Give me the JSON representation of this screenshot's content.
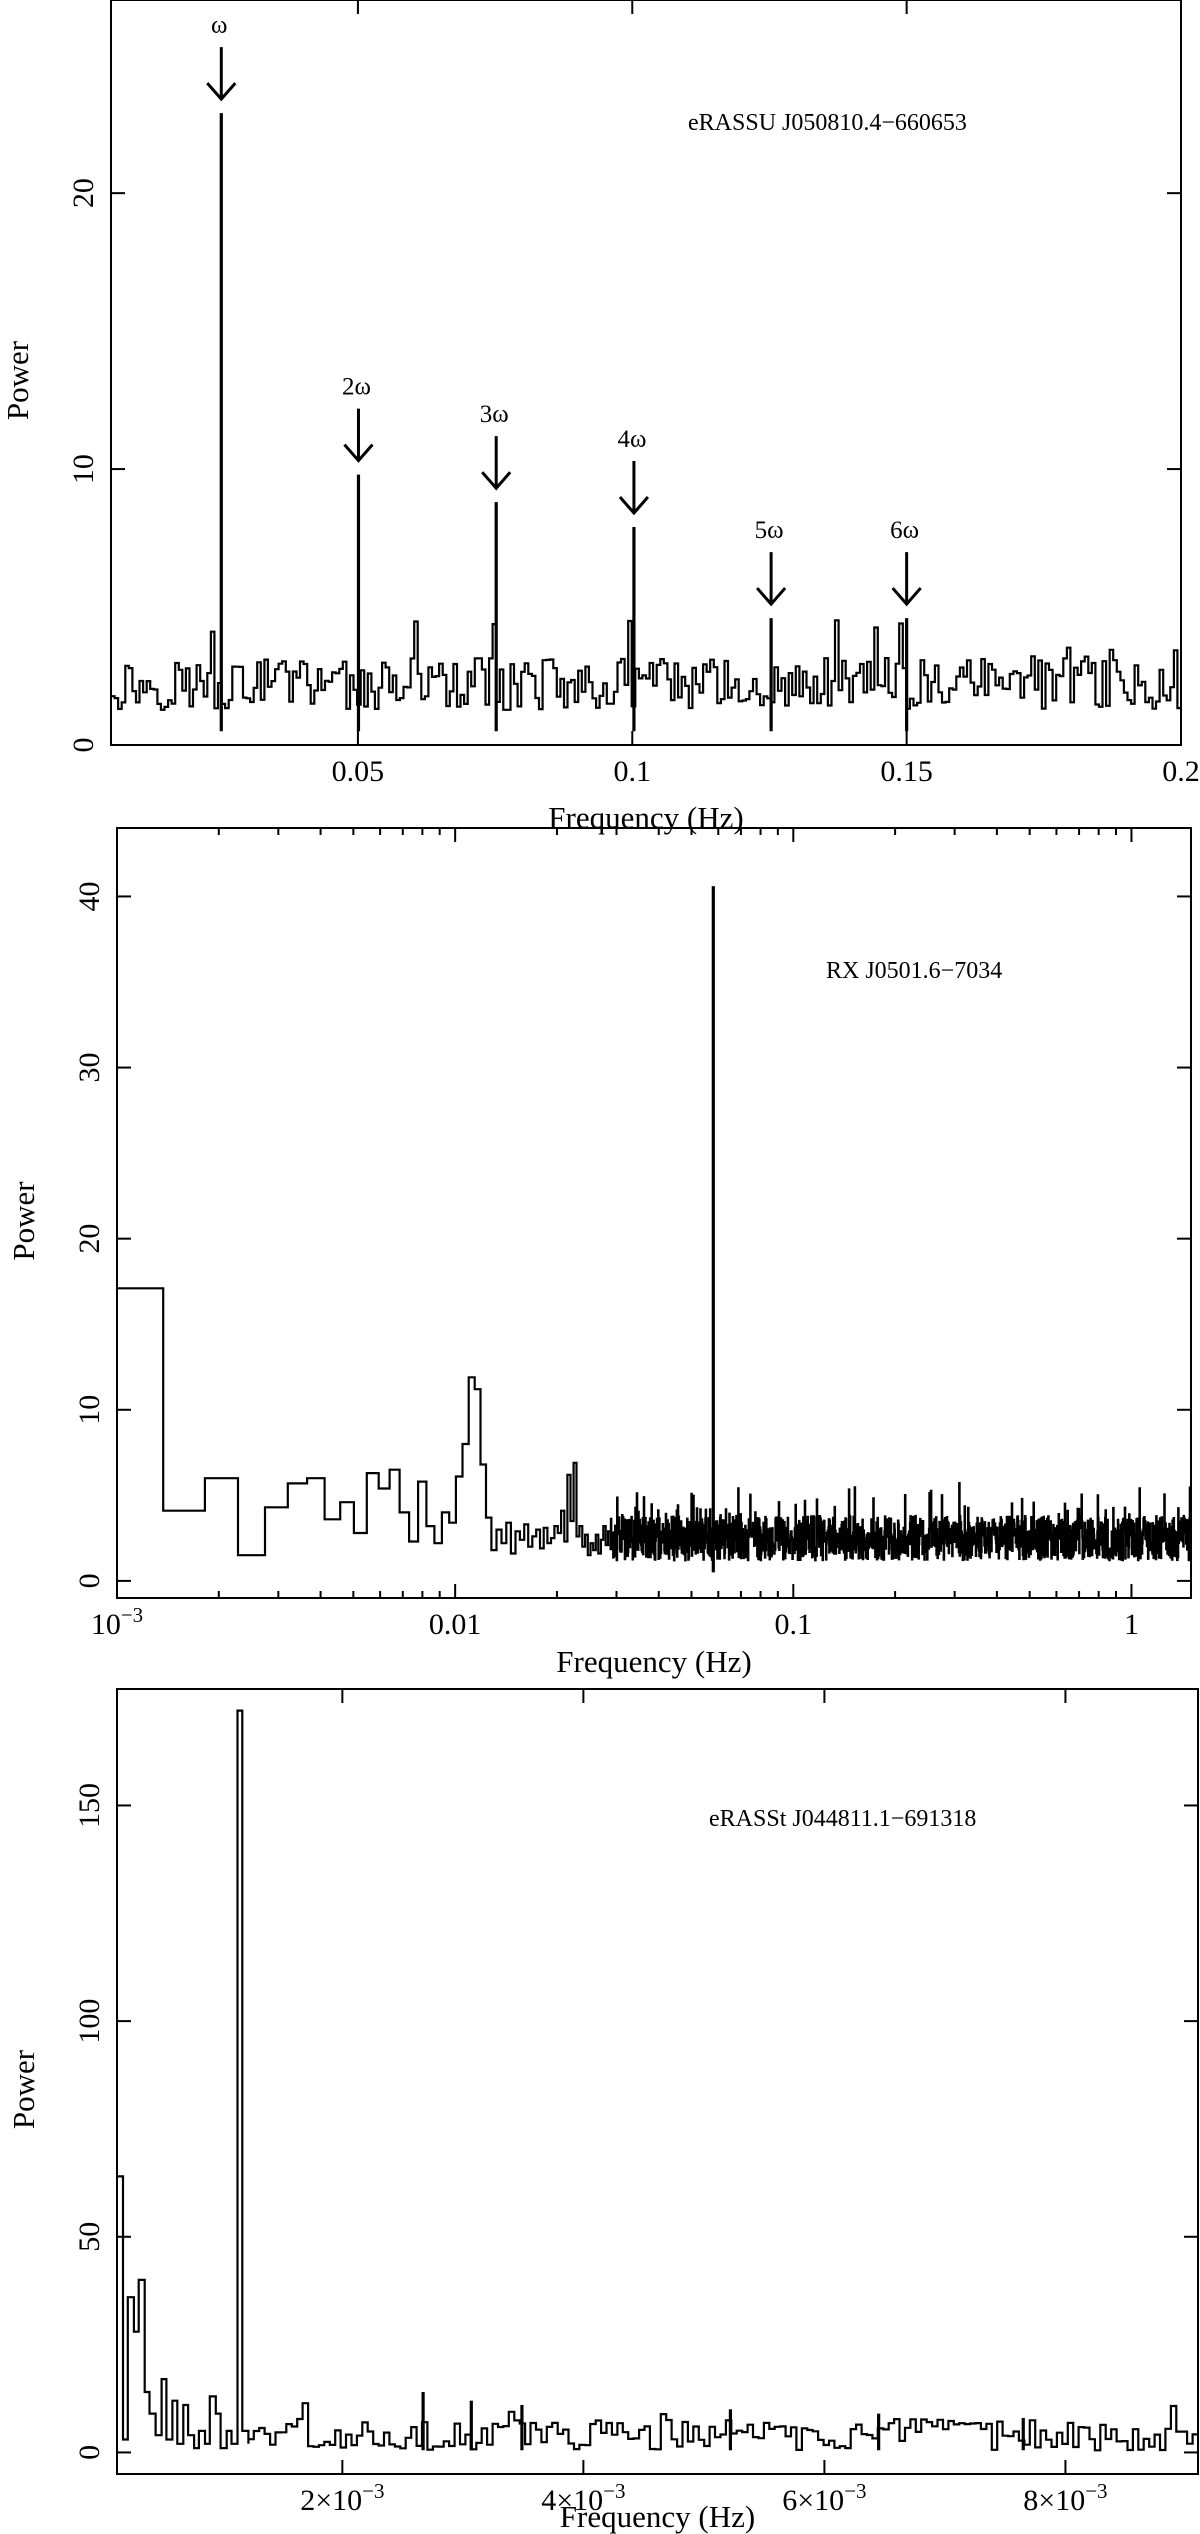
{
  "chart_data": [
    {
      "type": "line",
      "title": "",
      "annotation": "eRASSU J050810.4−660653",
      "xlabel": "Frequency (Hz)",
      "ylabel": "Power",
      "xscale": "linear",
      "xlim": [
        0.005,
        0.2
      ],
      "ylim": [
        0,
        27
      ],
      "xticks": [
        {
          "v": 0.05,
          "label": "0.05"
        },
        {
          "v": 0.1,
          "label": "0.1"
        },
        {
          "v": 0.15,
          "label": "0.15"
        },
        {
          "v": 0.2,
          "label": "0.2"
        }
      ],
      "yticks": [
        {
          "v": 0,
          "label": "0"
        },
        {
          "v": 10,
          "label": "10"
        },
        {
          "v": 20,
          "label": "20"
        }
      ],
      "grid": false,
      "noise": {
        "x_start": 0.005,
        "x_end": 0.2,
        "bins": 300,
        "mean": 2.2,
        "spread": 1.9
      },
      "peaks": [
        {
          "x": 0.0251,
          "y": 22.9
        },
        {
          "x": 0.0501,
          "y": 9.8
        },
        {
          "x": 0.0752,
          "y": 8.8
        },
        {
          "x": 0.1003,
          "y": 7.9
        },
        {
          "x": 0.1253,
          "y": 4.6
        },
        {
          "x": 0.15,
          "y": 4.6
        }
      ],
      "harmonic_markers": [
        {
          "label": "ω",
          "x": 0.0251,
          "y": 22.9
        },
        {
          "label": "2ω",
          "x": 0.0501,
          "y": 9.8
        },
        {
          "label": "3ω",
          "x": 0.0752,
          "y": 8.8
        },
        {
          "label": "4ω",
          "x": 0.1003,
          "y": 7.9
        },
        {
          "label": "5ω",
          "x": 0.1253,
          "y": 4.6
        },
        {
          "label": "6ω",
          "x": 0.15,
          "y": 4.6
        }
      ]
    },
    {
      "type": "line",
      "title": "",
      "annotation": "RX J0501.6−7034",
      "xlabel": "Frequency (Hz)",
      "ylabel": "Power",
      "xscale": "log",
      "xlim": [
        0.001,
        1.5
      ],
      "ylim": [
        -1,
        44
      ],
      "xticks": [
        {
          "v": 0.001,
          "label": "10",
          "sup": "−3"
        },
        {
          "v": 0.01,
          "label": "0.01"
        },
        {
          "v": 0.1,
          "label": "0.1"
        },
        {
          "v": 1,
          "label": "1"
        }
      ],
      "yticks": [
        {
          "v": 0,
          "label": "0"
        },
        {
          "v": 10,
          "label": "10"
        },
        {
          "v": 20,
          "label": "20"
        },
        {
          "v": 30,
          "label": "30"
        },
        {
          "v": 40,
          "label": "40"
        }
      ],
      "grid": false,
      "steps": [
        [
          0.001,
          17.1
        ],
        [
          0.00137,
          4.1
        ],
        [
          0.00182,
          6.0
        ],
        [
          0.00228,
          1.5
        ],
        [
          0.00274,
          4.3
        ],
        [
          0.0032,
          5.7
        ],
        [
          0.00365,
          6.0
        ],
        [
          0.00411,
          3.6
        ],
        [
          0.00457,
          4.6
        ],
        [
          0.00502,
          2.8
        ],
        [
          0.00548,
          6.3
        ],
        [
          0.00594,
          5.4
        ],
        [
          0.0064,
          6.5
        ],
        [
          0.00685,
          4.0
        ],
        [
          0.00731,
          2.3
        ],
        [
          0.00777,
          5.8
        ],
        [
          0.00822,
          3.2
        ],
        [
          0.00868,
          2.2
        ],
        [
          0.00914,
          4.0
        ],
        [
          0.0096,
          3.4
        ],
        [
          0.01005,
          6.1
        ],
        [
          0.01051,
          8.0
        ],
        [
          0.01097,
          11.9
        ],
        [
          0.01142,
          11.2
        ],
        [
          0.01188,
          6.8
        ],
        [
          0.01234,
          3.7
        ],
        [
          0.0128,
          1.8
        ],
        [
          0.01325,
          3.0
        ],
        [
          0.01371,
          2.2
        ],
        [
          0.01417,
          3.4
        ],
        [
          0.01462,
          1.6
        ],
        [
          0.01508,
          2.9
        ],
        [
          0.01554,
          2.4
        ],
        [
          0.016,
          3.3
        ],
        [
          0.01645,
          2.0
        ],
        [
          0.01691,
          2.6
        ],
        [
          0.01737,
          3.0
        ],
        [
          0.01782,
          1.9
        ],
        [
          0.01828,
          3.1
        ],
        [
          0.01874,
          2.2
        ],
        [
          0.0192,
          2.5
        ],
        [
          0.01965,
          3.2
        ],
        [
          0.02011,
          2.8
        ],
        [
          0.02057,
          4.1
        ],
        [
          0.02102,
          2.3
        ],
        [
          0.02148,
          6.2
        ],
        [
          0.02194,
          3.5
        ],
        [
          0.0224,
          6.9
        ],
        [
          0.02285,
          2.6
        ],
        [
          0.02331,
          3.2
        ],
        [
          0.02377,
          2.0
        ],
        [
          0.02422,
          2.7
        ],
        [
          0.02468,
          1.5
        ],
        [
          0.02514,
          2.2
        ],
        [
          0.0256,
          1.8
        ],
        [
          0.02605,
          2.7
        ],
        [
          0.02651,
          1.6
        ],
        [
          0.02697,
          2.4
        ],
        [
          0.02742,
          3.2
        ],
        [
          0.02788,
          2.1
        ],
        [
          0.02834,
          2.9
        ],
        [
          0.0288,
          1.8
        ]
      ],
      "noise": {
        "x_start": 0.0288,
        "x_end": 1.5,
        "bins": 1500,
        "mean": 2.5,
        "spread": 2.6
      },
      "peaks": [
        {
          "x": 0.058,
          "y": 40.6
        }
      ]
    },
    {
      "type": "line",
      "title": "",
      "annotation": "eRASSt J044811.1−691318",
      "xlabel": "Frequency (Hz)",
      "ylabel": "Power",
      "xscale": "linear",
      "xlim": [
        0.00013,
        0.0091
      ],
      "ylim": [
        -5,
        177
      ],
      "xticks": [
        {
          "v": 0.002,
          "label": "2×10",
          "sup": "−3"
        },
        {
          "v": 0.004,
          "label": "4×10",
          "sup": "−3"
        },
        {
          "v": 0.006,
          "label": "6×10",
          "sup": "−3"
        },
        {
          "v": 0.008,
          "label": "8×10",
          "sup": "−3"
        }
      ],
      "yticks": [
        {
          "v": 0,
          "label": "0"
        },
        {
          "v": 50,
          "label": "50"
        },
        {
          "v": 100,
          "label": "100"
        },
        {
          "v": 150,
          "label": "150"
        }
      ],
      "grid": false,
      "steps": [
        [
          0.00013,
          64
        ],
        [
          0.00018,
          3
        ],
        [
          0.00022,
          36
        ],
        [
          0.00027,
          28
        ],
        [
          0.00031,
          40
        ],
        [
          0.00036,
          14
        ],
        [
          0.0004,
          9
        ],
        [
          0.00045,
          4
        ],
        [
          0.0005,
          17
        ],
        [
          0.00054,
          3
        ],
        [
          0.00059,
          12
        ],
        [
          0.00063,
          2
        ],
        [
          0.00068,
          11
        ],
        [
          0.00072,
          4
        ],
        [
          0.00077,
          1
        ],
        [
          0.00081,
          5
        ],
        [
          0.00086,
          2
        ],
        [
          0.0009,
          13
        ],
        [
          0.00095,
          9
        ],
        [
          0.00099,
          1
        ],
        [
          0.00104,
          5
        ],
        [
          0.00108,
          2
        ],
        [
          0.00113,
          172
        ],
        [
          0.00117,
          5
        ],
        [
          0.00122,
          2
        ]
      ],
      "noise": {
        "x_start": 0.00122,
        "x_end": 0.0091,
        "bins": 175,
        "mean": 4,
        "spread": 7.5
      },
      "peaks": [
        {
          "x": 0.00267,
          "y": 14
        },
        {
          "x": 0.00307,
          "y": 12
        },
        {
          "x": 0.00349,
          "y": 11
        },
        {
          "x": 0.00522,
          "y": 10
        },
        {
          "x": 0.00645,
          "y": 9
        },
        {
          "x": 0.00765,
          "y": 8
        }
      ]
    }
  ]
}
